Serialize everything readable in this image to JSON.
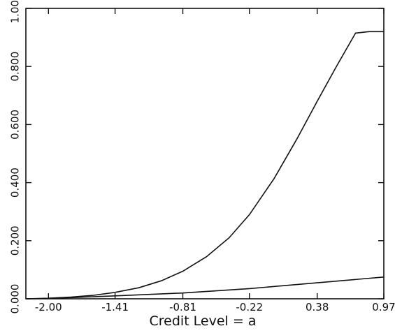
{
  "chart_data": {
    "type": "line",
    "title": "",
    "xlabel": "Credit Level = a",
    "ylabel": "",
    "xlim": [
      -2.2,
      0.97
    ],
    "ylim": [
      0,
      1.0
    ],
    "x_ticks": [
      -2.0,
      -1.41,
      -0.81,
      -0.22,
      0.38,
      0.97
    ],
    "x_tick_labels": [
      "-2.00",
      "-1.41",
      "-0.81",
      "-0.22",
      "0.38",
      "0.97"
    ],
    "y_ticks": [
      0.0,
      0.2,
      0.4,
      0.6,
      0.8,
      1.0
    ],
    "y_tick_labels": [
      "0.000",
      "0.200",
      "0.400",
      "0.600",
      "0.800",
      "1.000"
    ],
    "grid": false,
    "legend": "none",
    "series": [
      {
        "color": "#111111",
        "points": [
          [
            -2.2,
            0.0
          ],
          [
            -2.0,
            0.002
          ],
          [
            -1.8,
            0.006
          ],
          [
            -1.6,
            0.012
          ],
          [
            -1.41,
            0.022
          ],
          [
            -1.2,
            0.038
          ],
          [
            -1.0,
            0.062
          ],
          [
            -0.81,
            0.095
          ],
          [
            -0.6,
            0.145
          ],
          [
            -0.4,
            0.21
          ],
          [
            -0.22,
            0.29
          ],
          [
            0.0,
            0.415
          ],
          [
            0.2,
            0.55
          ],
          [
            0.38,
            0.68
          ],
          [
            0.55,
            0.8
          ],
          [
            0.72,
            0.915
          ],
          [
            0.84,
            0.92
          ],
          [
            0.97,
            0.92
          ]
        ]
      },
      {
        "color": "#111111",
        "points": [
          [
            -2.2,
            0.0
          ],
          [
            -2.0,
            0.001
          ],
          [
            -1.8,
            0.004
          ],
          [
            -1.41,
            0.01
          ],
          [
            -0.81,
            0.02
          ],
          [
            -0.22,
            0.035
          ],
          [
            0.38,
            0.055
          ],
          [
            0.97,
            0.075
          ]
        ]
      }
    ]
  }
}
